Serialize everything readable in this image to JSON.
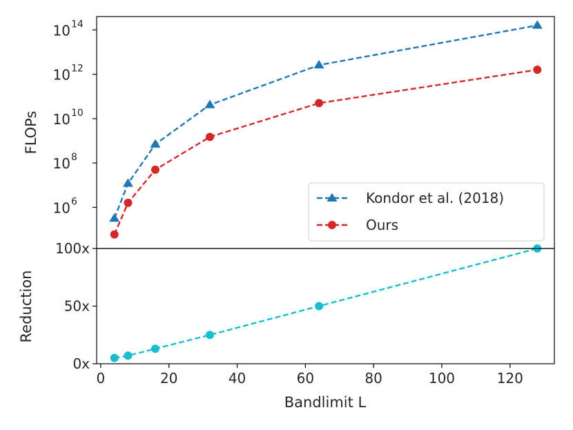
{
  "chart_data": [
    {
      "type": "line",
      "panel": "top",
      "ylabel": "FLOPs",
      "yscale": "log",
      "ylim": [
        14000.0,
        400000000000000.0
      ],
      "xlim": [
        -1.2,
        133
      ],
      "y_ticks": [
        {
          "value": 1000000.0,
          "base": "10",
          "exp": "6"
        },
        {
          "value": 100000000.0,
          "base": "10",
          "exp": "8"
        },
        {
          "value": 10000000000.0,
          "base": "10",
          "exp": "10"
        },
        {
          "value": 1000000000000.0,
          "base": "10",
          "exp": "12"
        },
        {
          "value": 100000000000000.0,
          "base": "10",
          "exp": "14"
        }
      ],
      "legend_position": "lower-right",
      "series": [
        {
          "name": "Kondor et al. (2018)",
          "color": "#1f77b4",
          "marker": "triangle",
          "x": [
            4,
            8,
            16,
            32,
            64,
            128
          ],
          "values": [
            320000.0,
            12000000.0,
            700000000.0,
            42000000000.0,
            2600000000000.0,
            160000000000000.0
          ]
        },
        {
          "name": "Ours",
          "color": "#d62728",
          "marker": "circle",
          "x": [
            4,
            8,
            16,
            32,
            64,
            128
          ],
          "values": [
            60000.0,
            1600000.0,
            50000000.0,
            1500000000.0,
            50000000000.0,
            1600000000000.0
          ]
        }
      ]
    },
    {
      "type": "line",
      "panel": "bottom",
      "xlabel": "Bandlimit L",
      "ylabel": "Reduction",
      "ylim": [
        0,
        100
      ],
      "xlim": [
        -1.2,
        133
      ],
      "x_ticks": [
        {
          "value": 0,
          "label": "0"
        },
        {
          "value": 20,
          "label": "20"
        },
        {
          "value": 40,
          "label": "40"
        },
        {
          "value": 60,
          "label": "60"
        },
        {
          "value": 80,
          "label": "80"
        },
        {
          "value": 100,
          "label": "100"
        },
        {
          "value": 120,
          "label": "120"
        }
      ],
      "y_ticks": [
        {
          "value": 0,
          "label": "0x"
        },
        {
          "value": 50,
          "label": "50x"
        },
        {
          "value": 100,
          "label": "100x"
        }
      ],
      "series": [
        {
          "name": "Reduction",
          "color": "#17becf",
          "marker": "circle",
          "x": [
            4,
            8,
            16,
            32,
            64,
            128
          ],
          "values": [
            5,
            7,
            13,
            25,
            50,
            100
          ]
        }
      ]
    }
  ]
}
